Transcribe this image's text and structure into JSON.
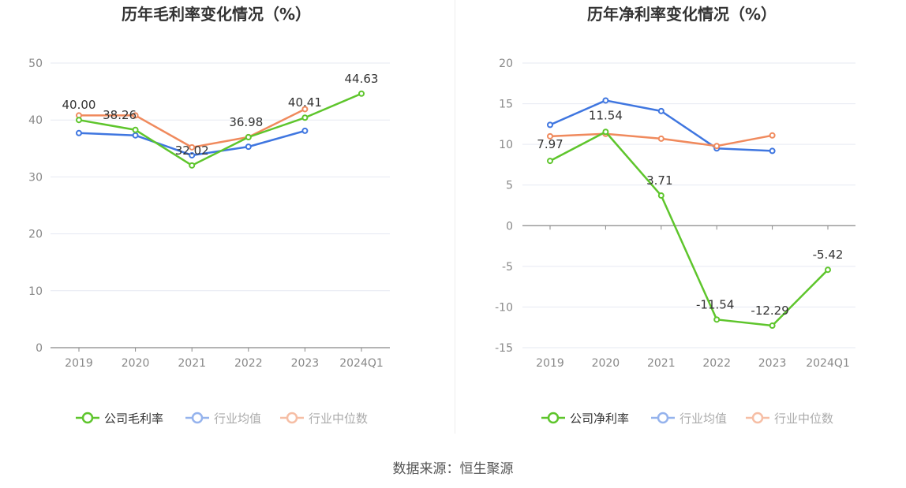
{
  "charts": [
    {
      "title": "历年毛利率变化情况（%）",
      "legend": [
        "公司毛利率",
        "行业均值",
        "行业中位数"
      ]
    },
    {
      "title": "历年净利率变化情况（%）",
      "legend": [
        "公司净利率",
        "行业均值",
        "行业中位数"
      ]
    }
  ],
  "source": "数据来源：恒生聚源",
  "colors": {
    "company": "#5ec52c",
    "avg": "#3f76e0",
    "median": "#f08a5d"
  },
  "chart_data": [
    {
      "type": "line",
      "title": "历年毛利率变化情况（%）",
      "categories": [
        "2019",
        "2020",
        "2021",
        "2022",
        "2023",
        "2024Q1"
      ],
      "ylim": [
        0,
        50
      ],
      "yticks": [
        0,
        10,
        20,
        30,
        40,
        50
      ],
      "grid": true,
      "legend_position": "bottom",
      "series": [
        {
          "name": "公司毛利率",
          "color": "#5ec52c",
          "values": [
            40.0,
            38.26,
            32.02,
            36.98,
            40.41,
            44.63
          ],
          "labels": [
            "40.00",
            "38.26",
            "32.02",
            "36.98",
            "40.41",
            "44.63"
          ]
        },
        {
          "name": "行业均值",
          "color": "#3f76e0",
          "values": [
            37.7,
            37.3,
            33.8,
            35.3,
            38.1,
            null
          ]
        },
        {
          "name": "行业中位数",
          "color": "#f08a5d",
          "values": [
            40.8,
            40.8,
            35.2,
            37.0,
            41.9,
            null
          ]
        }
      ]
    },
    {
      "type": "line",
      "title": "历年净利率变化情况（%）",
      "categories": [
        "2019",
        "2020",
        "2021",
        "2022",
        "2023",
        "2024Q1"
      ],
      "ylim": [
        -15,
        20
      ],
      "yticks": [
        -15,
        -10,
        -5,
        0,
        5,
        10,
        15,
        20
      ],
      "grid": true,
      "legend_position": "bottom",
      "series": [
        {
          "name": "公司净利率",
          "color": "#5ec52c",
          "values": [
            7.97,
            11.54,
            3.71,
            -11.54,
            -12.29,
            -5.42
          ],
          "labels": [
            "7.97",
            "11.54",
            "3.71",
            "-11.54",
            "-12.29",
            "-5.42"
          ]
        },
        {
          "name": "行业均值",
          "color": "#3f76e0",
          "values": [
            12.4,
            15.4,
            14.1,
            9.5,
            9.2,
            null
          ]
        },
        {
          "name": "行业中位数",
          "color": "#f08a5d",
          "values": [
            11.0,
            11.3,
            10.7,
            9.8,
            11.1,
            null
          ]
        }
      ]
    }
  ]
}
